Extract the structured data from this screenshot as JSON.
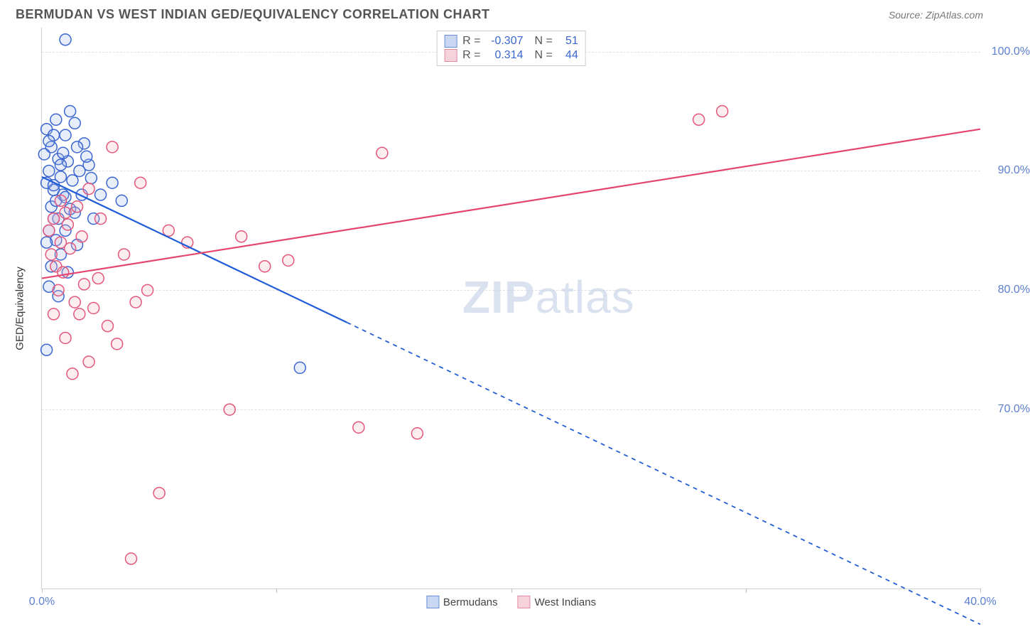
{
  "header": {
    "title": "BERMUDAN VS WEST INDIAN GED/EQUIVALENCY CORRELATION CHART",
    "source": "Source: ZipAtlas.com"
  },
  "watermark": {
    "part1": "ZIP",
    "part2": "atlas"
  },
  "chart": {
    "type": "scatter",
    "ylabel": "GED/Equivalency",
    "xlim": [
      0,
      40
    ],
    "ylim": [
      55,
      102
    ],
    "ytick_values": [
      70,
      80,
      90,
      100
    ],
    "ytick_labels": [
      "70.0%",
      "80.0%",
      "90.0%",
      "100.0%"
    ],
    "xtick_values": [
      0,
      10,
      20,
      30,
      40
    ],
    "xtick_labels": [
      "0.0%",
      "",
      "",
      "",
      "40.0%"
    ],
    "grid_color": "#e0e0e0",
    "axis_color": "#d0d0d0",
    "background_color": "#ffffff",
    "label_fontsize": 15,
    "tick_fontsize": 16,
    "tick_color": "#5b7fd1",
    "marker_radius": 8,
    "marker_stroke_width": 1.5,
    "marker_fill_opacity": 0.25,
    "line_width": 2.2,
    "series": [
      {
        "name": "Bermudans",
        "color_stroke": "#3b66d1",
        "color_fill": "#9fb8e8",
        "line_color": "#1f5bd6",
        "R": "-0.307",
        "N": "51",
        "trend": {
          "x1": 0,
          "y1": 89.5,
          "x2_solid": 13,
          "y2_solid": 77.3,
          "x2": 40,
          "y2": 52.0
        },
        "points": [
          [
            1.0,
            101.0
          ],
          [
            1.2,
            95.0
          ],
          [
            0.6,
            94.3
          ],
          [
            1.4,
            94.0
          ],
          [
            0.2,
            93.5
          ],
          [
            0.5,
            93.0
          ],
          [
            1.0,
            93.0
          ],
          [
            1.8,
            92.3
          ],
          [
            0.4,
            92.0
          ],
          [
            1.5,
            92.0
          ],
          [
            0.1,
            91.4
          ],
          [
            0.7,
            91.0
          ],
          [
            1.1,
            90.8
          ],
          [
            2.0,
            90.5
          ],
          [
            0.3,
            90.0
          ],
          [
            0.8,
            89.5
          ],
          [
            1.3,
            89.2
          ],
          [
            0.2,
            89.0
          ],
          [
            3.0,
            89.0
          ],
          [
            0.5,
            88.4
          ],
          [
            0.9,
            88.0
          ],
          [
            1.7,
            88.0
          ],
          [
            2.5,
            88.0
          ],
          [
            3.4,
            87.5
          ],
          [
            0.4,
            87.0
          ],
          [
            1.2,
            86.8
          ],
          [
            0.7,
            86.0
          ],
          [
            2.2,
            86.0
          ],
          [
            0.3,
            85.0
          ],
          [
            1.0,
            85.0
          ],
          [
            0.6,
            84.2
          ],
          [
            0.2,
            84.0
          ],
          [
            1.5,
            83.8
          ],
          [
            0.8,
            83.0
          ],
          [
            0.4,
            82.0
          ],
          [
            1.1,
            81.5
          ],
          [
            0.3,
            80.3
          ],
          [
            0.7,
            79.5
          ],
          [
            0.2,
            75.0
          ],
          [
            11.0,
            73.5
          ],
          [
            0.5,
            88.8
          ],
          [
            1.6,
            90.0
          ],
          [
            0.9,
            91.5
          ],
          [
            2.1,
            89.4
          ],
          [
            0.6,
            87.5
          ],
          [
            1.4,
            86.5
          ],
          [
            0.3,
            92.5
          ],
          [
            0.8,
            90.5
          ],
          [
            1.9,
            91.2
          ],
          [
            0.5,
            86.0
          ],
          [
            1.0,
            87.8
          ]
        ]
      },
      {
        "name": "West Indians",
        "color_stroke": "#e4567a",
        "color_fill": "#f4b9c8",
        "line_color": "#e4456f",
        "R": "0.314",
        "N": "44",
        "trend": {
          "x1": 0,
          "y1": 81.0,
          "x2_solid": 40,
          "y2_solid": 93.5,
          "x2": 40,
          "y2": 93.5
        },
        "points": [
          [
            0.5,
            86.0
          ],
          [
            1.0,
            86.5
          ],
          [
            0.3,
            85.0
          ],
          [
            1.5,
            87.0
          ],
          [
            0.8,
            84.0
          ],
          [
            2.0,
            88.5
          ],
          [
            3.0,
            92.0
          ],
          [
            0.4,
            83.0
          ],
          [
            1.2,
            83.5
          ],
          [
            2.5,
            86.0
          ],
          [
            4.2,
            89.0
          ],
          [
            0.6,
            82.0
          ],
          [
            1.8,
            80.5
          ],
          [
            0.9,
            81.5
          ],
          [
            3.5,
            83.0
          ],
          [
            1.4,
            79.0
          ],
          [
            2.2,
            78.5
          ],
          [
            5.4,
            85.0
          ],
          [
            0.7,
            80.0
          ],
          [
            4.0,
            79.0
          ],
          [
            1.6,
            78.0
          ],
          [
            2.8,
            77.0
          ],
          [
            14.5,
            91.5
          ],
          [
            6.2,
            84.0
          ],
          [
            1.0,
            76.0
          ],
          [
            3.2,
            75.5
          ],
          [
            8.5,
            84.5
          ],
          [
            2.0,
            74.0
          ],
          [
            4.5,
            80.0
          ],
          [
            1.3,
            73.0
          ],
          [
            8.0,
            70.0
          ],
          [
            9.5,
            82.0
          ],
          [
            13.5,
            68.5
          ],
          [
            16.0,
            68.0
          ],
          [
            10.5,
            82.5
          ],
          [
            28.0,
            94.3
          ],
          [
            29.0,
            95.0
          ],
          [
            5.0,
            63.0
          ],
          [
            3.8,
            57.5
          ],
          [
            0.5,
            78.0
          ],
          [
            1.1,
            85.5
          ],
          [
            0.8,
            87.5
          ],
          [
            2.4,
            81.0
          ],
          [
            1.7,
            84.5
          ]
        ]
      }
    ],
    "stats_box": {
      "rows": [
        {
          "swatch_fill": "#c9d7f2",
          "swatch_stroke": "#6a8fd8",
          "r_label": "R =",
          "r_val": "-0.307",
          "n_label": "N =",
          "n_val": "51"
        },
        {
          "swatch_fill": "#f6d3dc",
          "swatch_stroke": "#e28ba2",
          "r_label": "R =",
          "r_val": "0.314",
          "n_label": "N =",
          "n_val": "44"
        }
      ]
    },
    "bottom_legend": [
      {
        "swatch_fill": "#c9d7f2",
        "swatch_stroke": "#6a8fd8",
        "label": "Bermudans"
      },
      {
        "swatch_fill": "#f6d3dc",
        "swatch_stroke": "#e28ba2",
        "label": "West Indians"
      }
    ]
  }
}
